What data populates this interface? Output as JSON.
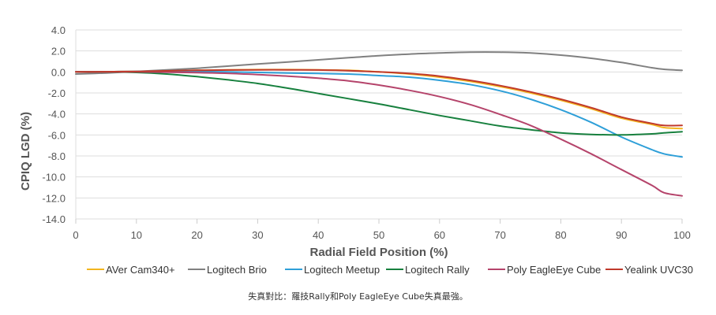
{
  "chart_data": {
    "type": "line",
    "title": "",
    "xlabel": "Radial Field Position (%)",
    "ylabel": "CPIQ LGD (%)",
    "xlim": [
      0,
      100
    ],
    "ylim": [
      -14,
      4
    ],
    "x_ticks": [
      "0",
      "10",
      "20",
      "30",
      "40",
      "50",
      "60",
      "70",
      "80",
      "90",
      "100"
    ],
    "y_ticks": [
      "4.0",
      "2.0",
      "0.0",
      "-2.0",
      "-4.0",
      "-6.0",
      "-8.0",
      "-10.0",
      "-12.0",
      "-14.0"
    ],
    "grid": "horizontal",
    "legend_position": "bottom",
    "x": [
      0,
      5,
      10,
      15,
      20,
      25,
      30,
      35,
      40,
      45,
      50,
      55,
      60,
      65,
      70,
      75,
      80,
      85,
      90,
      95,
      97,
      100
    ],
    "series": [
      {
        "name": "AVer Cam340+",
        "color": "#f2b51f",
        "values": [
          0,
          0.02,
          0.05,
          0.1,
          0.15,
          0.2,
          0.22,
          0.22,
          0.2,
          0.15,
          0,
          -0.2,
          -0.5,
          -0.9,
          -1.4,
          -2,
          -2.7,
          -3.5,
          -4.4,
          -5,
          -5.3,
          -5.4
        ]
      },
      {
        "name": "Logitech Brio",
        "color": "#808080",
        "values": [
          -0.2,
          -0.1,
          0.05,
          0.2,
          0.35,
          0.55,
          0.75,
          0.95,
          1.15,
          1.35,
          1.55,
          1.7,
          1.8,
          1.88,
          1.88,
          1.8,
          1.6,
          1.3,
          0.9,
          0.4,
          0.25,
          0.15
        ]
      },
      {
        "name": "Logitech Meetup",
        "color": "#2e9fd8",
        "values": [
          0,
          0.02,
          0.05,
          0.05,
          0.05,
          0,
          -0.05,
          -0.1,
          -0.15,
          -0.2,
          -0.35,
          -0.5,
          -0.8,
          -1.2,
          -1.8,
          -2.6,
          -3.6,
          -4.8,
          -6.2,
          -7.4,
          -7.8,
          -8.1
        ]
      },
      {
        "name": "Logitech Rally",
        "color": "#17803e",
        "values": [
          0,
          0,
          -0.05,
          -0.2,
          -0.45,
          -0.75,
          -1.1,
          -1.55,
          -2.05,
          -2.55,
          -3.05,
          -3.6,
          -4.15,
          -4.65,
          -5.15,
          -5.5,
          -5.8,
          -5.95,
          -6,
          -5.9,
          -5.8,
          -5.7
        ]
      },
      {
        "name": "Poly EagleEye Cube",
        "color": "#b5446b",
        "values": [
          0,
          0,
          0,
          -0.03,
          -0.07,
          -0.13,
          -0.25,
          -0.4,
          -0.6,
          -0.85,
          -1.25,
          -1.75,
          -2.35,
          -3.1,
          -4.05,
          -5.1,
          -6.4,
          -7.8,
          -9.3,
          -10.8,
          -11.5,
          -11.8
        ]
      },
      {
        "name": "Yealink UVC30",
        "color": "#c0392b",
        "values": [
          0,
          0.02,
          0.05,
          0.1,
          0.15,
          0.18,
          0.2,
          0.2,
          0.18,
          0.12,
          0,
          -0.15,
          -0.4,
          -0.8,
          -1.3,
          -1.9,
          -2.6,
          -3.4,
          -4.3,
          -4.9,
          -5.1,
          -5.1
        ]
      }
    ]
  },
  "caption": "失真對比：羅技Rally和Poly EagleEye Cube失真最強。"
}
